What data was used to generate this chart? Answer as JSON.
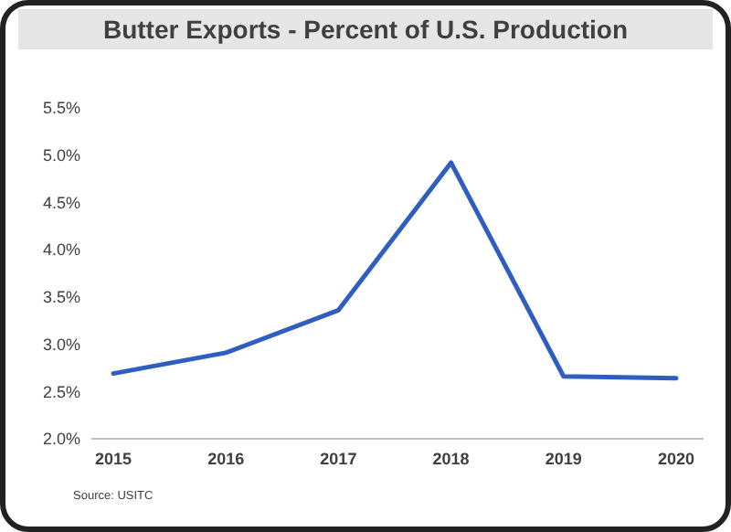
{
  "chart_data": {
    "type": "line",
    "title": "Butter Exports - Percent of U.S. Production",
    "categories": [
      "2015",
      "2016",
      "2017",
      "2018",
      "2019",
      "2020"
    ],
    "series": [
      {
        "color": "#2e5fc0",
        "values": [
          2.69,
          2.91,
          3.36,
          4.92,
          2.66,
          2.64
        ]
      }
    ],
    "ylim": [
      2,
      5.5
    ],
    "yticks": [
      {
        "value": 2,
        "label": "2.0%"
      },
      {
        "value": 2.5,
        "label": "2.5%"
      },
      {
        "value": 3,
        "label": "3.0%"
      },
      {
        "value": 3.5,
        "label": "3.5%"
      },
      {
        "value": 4,
        "label": "4.0%"
      },
      {
        "value": 4.5,
        "label": "4.5%"
      },
      {
        "value": 5,
        "label": "5.0%"
      },
      {
        "value": 5.5,
        "label": "5.5%"
      }
    ],
    "grid": false,
    "marker": "none",
    "line_style": "solid",
    "annotations": [
      "Source: USITC"
    ]
  }
}
